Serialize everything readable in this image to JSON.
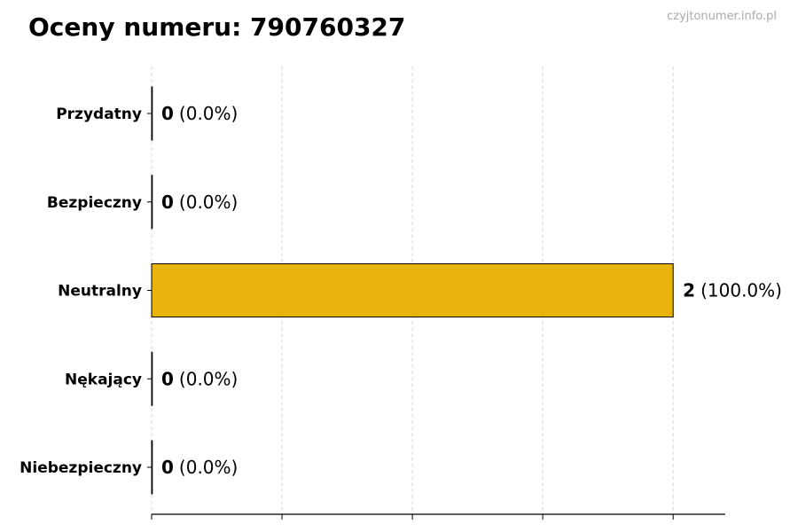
{
  "watermark": "czyjtonumer.info.pl",
  "chart_data": {
    "type": "bar",
    "orientation": "horizontal",
    "title": "Oceny numeru: 790760327",
    "categories": [
      "Przydatny",
      "Bezpieczny",
      "Neutralny",
      "Nękający",
      "Niebezpieczny"
    ],
    "values": [
      0,
      0,
      2,
      0,
      0
    ],
    "value_labels": [
      "0",
      "0",
      "2",
      "0",
      "0"
    ],
    "percent_labels": [
      "(0.0%)",
      "(0.0%)",
      "(100.0%)",
      "(0.0%)",
      "(0.0%)"
    ],
    "colors": [
      "#4caf50",
      "#8bc34a",
      "#e8b30a",
      "#ff9800",
      "#f44336"
    ],
    "xlim": [
      0,
      2.2
    ],
    "xticks": [
      0,
      0.5,
      1,
      1.5,
      2
    ],
    "xtick_labels_shown": false,
    "grid": "vertical dashed",
    "xlabel": "",
    "ylabel": ""
  }
}
